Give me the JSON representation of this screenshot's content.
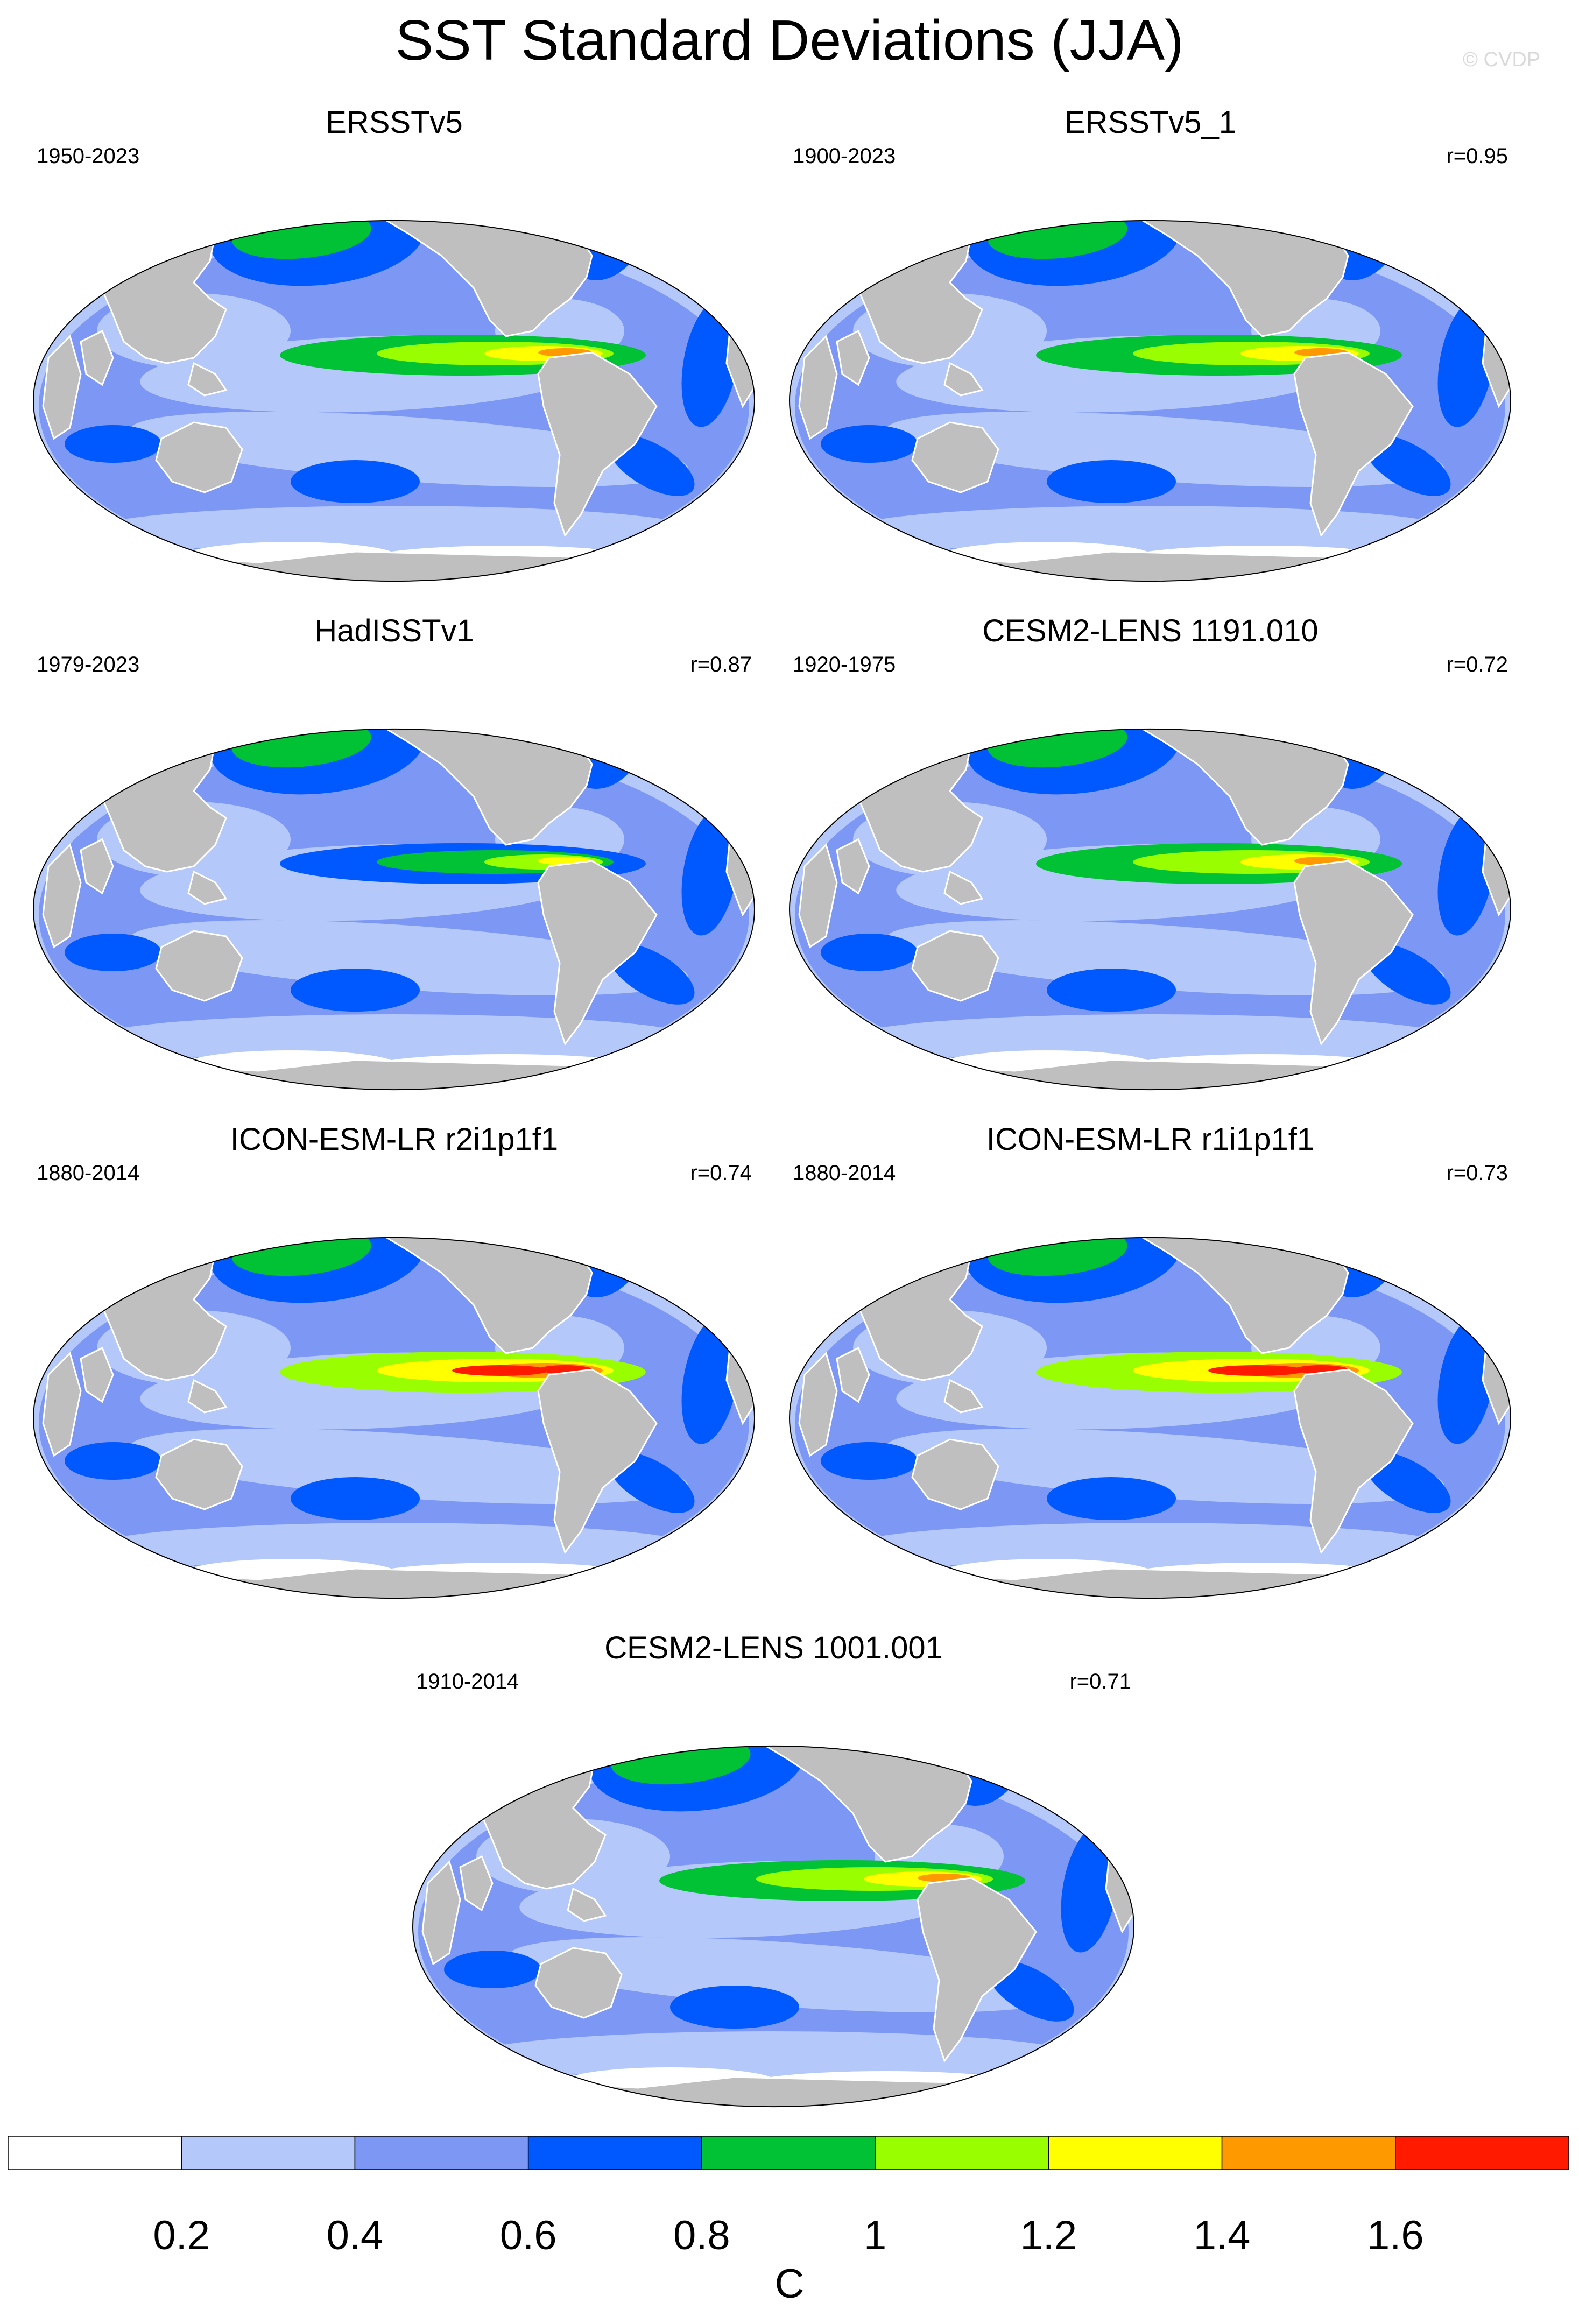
{
  "title": "SST Standard Deviations (JJA)",
  "credit": "© CVDP",
  "colors": {
    "land": "#bfbfbf",
    "levels": [
      "#ffffff",
      "#b4c8f9",
      "#7d97f5",
      "#0058ff",
      "#00c234",
      "#99ff00",
      "#ffff00",
      "#ff9900",
      "#ff1a00"
    ]
  },
  "panels": [
    {
      "title": "ERSSTv5",
      "years": "1950-2023",
      "corr": ""
    },
    {
      "title": "ERSSTv5_1",
      "years": "1900-2023",
      "corr": "r=0.95"
    },
    {
      "title": "HadISSTv1",
      "years": "1979-2023",
      "corr": "r=0.87"
    },
    {
      "title": "CESM2-LENS 1191.010",
      "years": "1920-1975",
      "corr": "r=0.72"
    },
    {
      "title": "ICON-ESM-LR r2i1p1f1",
      "years": "1880-2014",
      "corr": "r=0.74"
    },
    {
      "title": "ICON-ESM-LR r1i1p1f1",
      "years": "1880-2014",
      "corr": "r=0.73"
    },
    {
      "title": "CESM2-LENS 1001.001",
      "years": "1910-2014",
      "corr": "r=0.71"
    }
  ],
  "colorbar": {
    "labels": [
      "0.2",
      "0.4",
      "0.6",
      "0.8",
      "1",
      "1.2",
      "1.4",
      "1.6"
    ],
    "unit": "C"
  }
}
